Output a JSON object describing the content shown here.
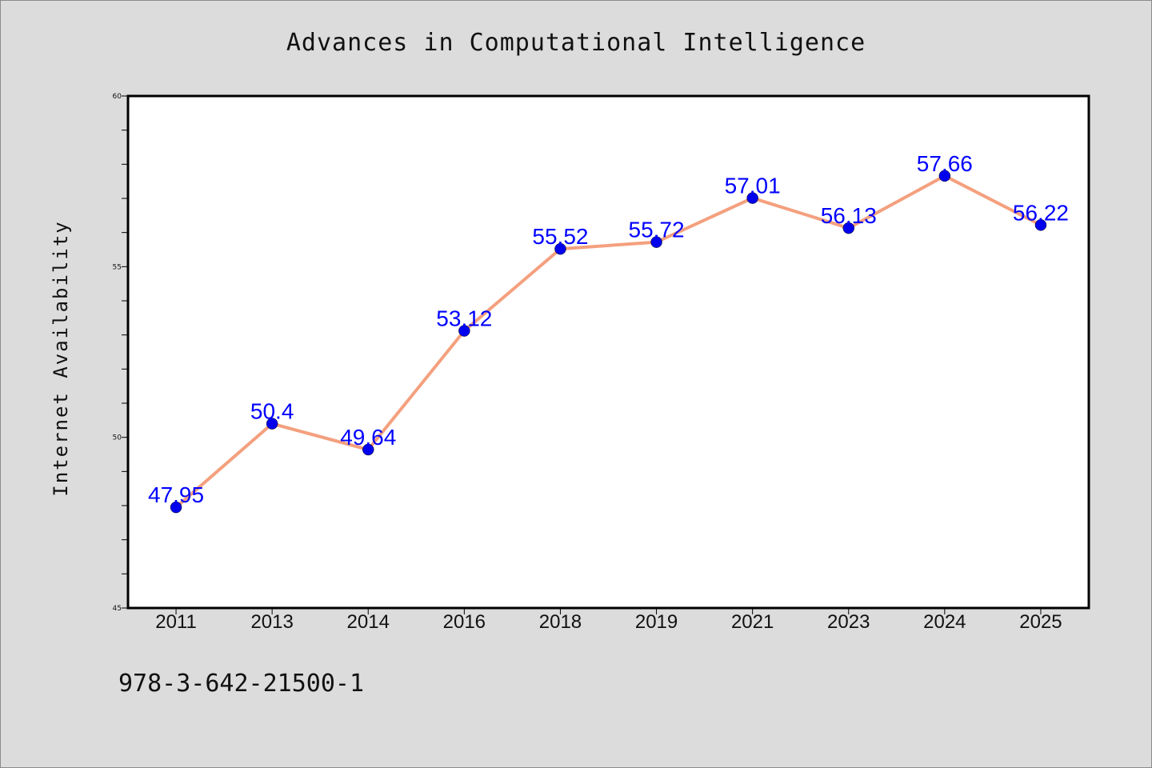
{
  "chart_data": {
    "type": "line",
    "title": "Advances in Computational Intelligence",
    "xlabel": "",
    "ylabel": "Internet Availability",
    "categories": [
      "2011",
      "2013",
      "2014",
      "2016",
      "2018",
      "2019",
      "2021",
      "2023",
      "2024",
      "2025"
    ],
    "series": [
      {
        "values": [
          47.95,
          50.4,
          49.64,
          53.12,
          55.52,
          55.72,
          57.01,
          56.13,
          57.66,
          56.22
        ],
        "labels": [
          "47.95",
          "50.4",
          "49.64",
          "53.12",
          "55.52",
          "55.72",
          "57.01",
          "56.13",
          "57.66",
          "56.22"
        ],
        "line_color": "#f4a07e",
        "marker_color": "#0000ee",
        "label_color": "#0000ff"
      }
    ],
    "ylim": [
      45,
      60
    ],
    "yticks": [
      "45",
      "50",
      "55",
      "60"
    ],
    "grid": false,
    "legend": "none"
  },
  "footer": {
    "isbn": "978-3-642-21500-1"
  }
}
